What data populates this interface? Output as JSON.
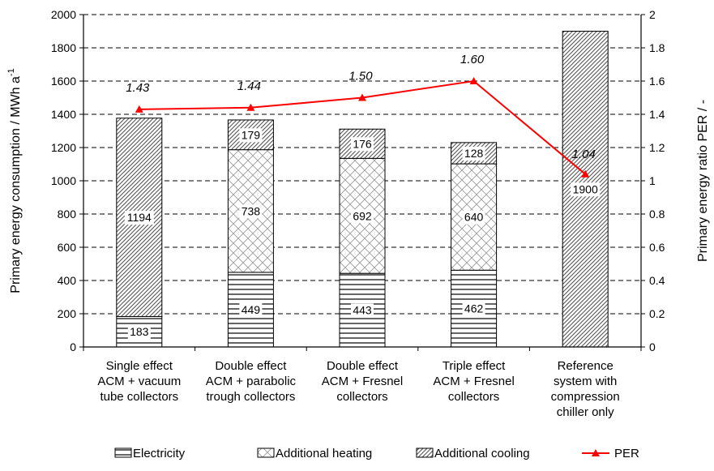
{
  "chart_data": {
    "type": "bar",
    "stacked": true,
    "categories": [
      [
        "Single effect",
        "ACM + vacuum",
        "tube collectors"
      ],
      [
        "Double effect",
        "ACM + parabolic",
        "trough collectors"
      ],
      [
        "Double effect",
        "ACM + Fresnel",
        "collectors"
      ],
      [
        "Triple effect",
        "ACM + Fresnel",
        "collectors"
      ],
      [
        "Reference",
        "system with",
        "compression",
        "chiller only"
      ]
    ],
    "series": [
      {
        "name": "Electricity",
        "axis": "left",
        "values": [
          183,
          449,
          443,
          462,
          0
        ],
        "labels": [
          "183",
          "449",
          "443",
          "462",
          ""
        ]
      },
      {
        "name": "Additional heating",
        "axis": "left",
        "values": [
          0,
          738,
          692,
          640,
          0
        ],
        "labels": [
          "",
          "738",
          "692",
          "640",
          ""
        ]
      },
      {
        "name": "Additional cooling",
        "axis": "left",
        "values": [
          1194,
          179,
          176,
          128,
          1900
        ],
        "labels": [
          "1194",
          "179",
          "176",
          "128",
          "1900"
        ]
      },
      {
        "name": "PER",
        "axis": "right",
        "type": "line",
        "values": [
          1.43,
          1.44,
          1.5,
          1.6,
          1.04
        ],
        "labels": [
          "1.43",
          "1.44",
          "1.50",
          "1.60",
          "1.04"
        ],
        "color": "#ff0000"
      }
    ],
    "ylabel": "Primary energy consumption / MWh a",
    "ylabel_superscript": "-1",
    "y2label": "Primary energy ratio PER / -",
    "ylim": [
      0,
      2000
    ],
    "y2lim": [
      0,
      2
    ],
    "yticks": [
      "0",
      "200",
      "400",
      "600",
      "800",
      "1000",
      "1200",
      "1400",
      "1600",
      "1800",
      "2000"
    ],
    "y2ticks": [
      "0",
      "0.2",
      "0.4",
      "0.6",
      "0.8",
      "1",
      "1.2",
      "1.4",
      "1.6",
      "1.8",
      "2"
    ],
    "grid": "dashed-horizontal",
    "legend_position": "bottom"
  }
}
